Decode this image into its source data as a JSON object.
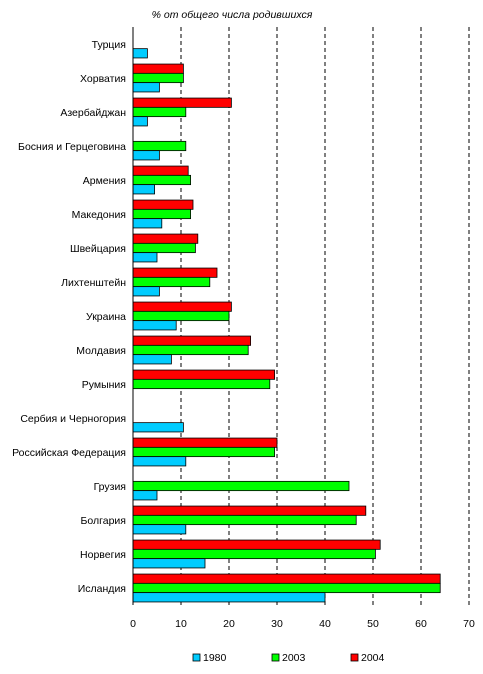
{
  "chart_data": {
    "type": "bar",
    "orientation": "horizontal",
    "title": "% от общего числа родившихся",
    "categories": [
      "Турция",
      "Хорватия",
      "Азербайджан",
      "Босния и Герцеговина",
      "Армения",
      "Македония",
      "Швейцария",
      "Лихтенштейн",
      "Украина",
      "Молдавия",
      "Румыния",
      "Сербия и Черногория",
      "Российская Федерация",
      "Грузия",
      "Болгария",
      "Норвегия",
      "Исландия"
    ],
    "series": [
      {
        "name": "2004",
        "color": "#ff0000",
        "values": [
          null,
          10.5,
          20.5,
          null,
          11.5,
          12.5,
          13.5,
          17.5,
          20.5,
          24.5,
          29.5,
          null,
          30,
          null,
          48.5,
          51.5,
          64
        ]
      },
      {
        "name": "2003",
        "color": "#00ff00",
        "values": [
          null,
          10.5,
          11,
          11,
          12,
          12,
          13,
          16,
          20,
          24,
          28.5,
          null,
          29.5,
          45,
          46.5,
          50.5,
          64
        ]
      },
      {
        "name": "1980",
        "color": "#00ccff",
        "values": [
          3,
          5.5,
          3,
          5.5,
          4.5,
          6,
          5,
          5.5,
          9,
          8,
          null,
          10.5,
          11,
          5,
          11,
          15,
          40
        ]
      }
    ],
    "legend": [
      "1980",
      "2003",
      "2004"
    ],
    "legend_position": "bottom",
    "xlim": [
      0,
      70
    ],
    "xticks": [
      0,
      10,
      20,
      30,
      40,
      50,
      60,
      70
    ],
    "grid": "vertical-dashed"
  }
}
